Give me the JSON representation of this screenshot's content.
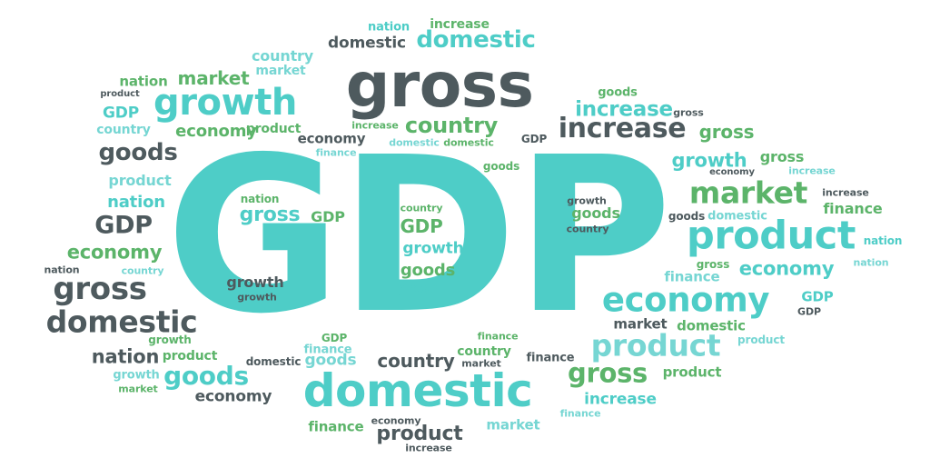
{
  "cloud": {
    "main_word": "GDP",
    "colors": {
      "teal": "#4ecdc7",
      "green": "#5cb46a",
      "dark": "#4e5a5e",
      "light_teal": "#76d6d3"
    },
    "words": [
      {
        "text": "nation",
        "color": "teal"
      },
      {
        "text": "increase",
        "color": "green"
      },
      {
        "text": "domestic",
        "color": "dark"
      },
      {
        "text": "domestic",
        "color": "teal"
      },
      {
        "text": "country",
        "color": "light_teal"
      },
      {
        "text": "market",
        "color": "light_teal"
      },
      {
        "text": "gross",
        "color": "dark"
      },
      {
        "text": "nation",
        "color": "green"
      },
      {
        "text": "market",
        "color": "green"
      },
      {
        "text": "product",
        "color": "dark"
      },
      {
        "text": "growth",
        "color": "teal"
      },
      {
        "text": "GDP",
        "color": "teal"
      },
      {
        "text": "goods",
        "color": "green"
      },
      {
        "text": "increase",
        "color": "teal"
      },
      {
        "text": "gross",
        "color": "dark"
      },
      {
        "text": "country",
        "color": "light_teal"
      },
      {
        "text": "country",
        "color": "green"
      },
      {
        "text": "economy",
        "color": "green"
      },
      {
        "text": "increase",
        "color": "green"
      },
      {
        "text": "product",
        "color": "green"
      },
      {
        "text": "increase",
        "color": "dark"
      },
      {
        "text": "gross",
        "color": "green"
      },
      {
        "text": "economy",
        "color": "dark"
      },
      {
        "text": "domestic",
        "color": "light_teal"
      },
      {
        "text": "domestic",
        "color": "green"
      },
      {
        "text": "GDP",
        "color": "dark"
      },
      {
        "text": "finance",
        "color": "light_teal"
      },
      {
        "text": "goods",
        "color": "dark"
      },
      {
        "text": "goods",
        "color": "green"
      },
      {
        "text": "growth",
        "color": "teal"
      },
      {
        "text": "gross",
        "color": "green"
      },
      {
        "text": "economy",
        "color": "dark"
      },
      {
        "text": "increase",
        "color": "light_teal"
      },
      {
        "text": "product",
        "color": "light_teal"
      },
      {
        "text": "nation",
        "color": "teal"
      },
      {
        "text": "market",
        "color": "green"
      },
      {
        "text": "increase",
        "color": "dark"
      },
      {
        "text": "nation",
        "color": "green"
      },
      {
        "text": "gross",
        "color": "teal"
      },
      {
        "text": "GDP",
        "color": "green"
      },
      {
        "text": "country",
        "color": "green"
      },
      {
        "text": "GDP",
        "color": "green"
      },
      {
        "text": "growth",
        "color": "teal"
      },
      {
        "text": "goods",
        "color": "green"
      },
      {
        "text": "gross",
        "color": "teal"
      },
      {
        "text": "growth",
        "color": "dark"
      },
      {
        "text": "goods",
        "color": "green"
      },
      {
        "text": "country",
        "color": "dark"
      },
      {
        "text": "goods",
        "color": "dark"
      },
      {
        "text": "domestic",
        "color": "light_teal"
      },
      {
        "text": "GDP",
        "color": "dark"
      },
      {
        "text": "finance",
        "color": "green"
      },
      {
        "text": "economy",
        "color": "green"
      },
      {
        "text": "country",
        "color": "light_teal"
      },
      {
        "text": "product",
        "color": "teal"
      },
      {
        "text": "nation",
        "color": "teal"
      },
      {
        "text": "nation",
        "color": "dark"
      },
      {
        "text": "gross",
        "color": "green"
      },
      {
        "text": "finance",
        "color": "light_teal"
      },
      {
        "text": "economy",
        "color": "teal"
      },
      {
        "text": "nation",
        "color": "light_teal"
      },
      {
        "text": "gross",
        "color": "dark"
      },
      {
        "text": "growth",
        "color": "dark"
      },
      {
        "text": "growth",
        "color": "dark"
      },
      {
        "text": "economy",
        "color": "teal"
      },
      {
        "text": "GDP",
        "color": "teal"
      },
      {
        "text": "GDP",
        "color": "dark"
      },
      {
        "text": "domestic",
        "color": "dark"
      },
      {
        "text": "market",
        "color": "dark"
      },
      {
        "text": "domestic",
        "color": "green"
      },
      {
        "text": "growth",
        "color": "green"
      },
      {
        "text": "GDP",
        "color": "green"
      },
      {
        "text": "finance",
        "color": "light_teal"
      },
      {
        "text": "product",
        "color": "light_teal"
      },
      {
        "text": "finance",
        "color": "green"
      },
      {
        "text": "product",
        "color": "light_teal"
      },
      {
        "text": "nation",
        "color": "dark"
      },
      {
        "text": "product",
        "color": "green"
      },
      {
        "text": "domestic",
        "color": "dark"
      },
      {
        "text": "goods",
        "color": "light_teal"
      },
      {
        "text": "country",
        "color": "dark"
      },
      {
        "text": "country",
        "color": "green"
      },
      {
        "text": "market",
        "color": "dark"
      },
      {
        "text": "finance",
        "color": "dark"
      },
      {
        "text": "growth",
        "color": "light_teal"
      },
      {
        "text": "goods",
        "color": "teal"
      },
      {
        "text": "gross",
        "color": "green"
      },
      {
        "text": "product",
        "color": "green"
      },
      {
        "text": "market",
        "color": "green"
      },
      {
        "text": "economy",
        "color": "dark"
      },
      {
        "text": "domestic",
        "color": "teal"
      },
      {
        "text": "increase",
        "color": "teal"
      },
      {
        "text": "finance",
        "color": "light_teal"
      },
      {
        "text": "finance",
        "color": "green"
      },
      {
        "text": "economy",
        "color": "dark"
      },
      {
        "text": "market",
        "color": "light_teal"
      },
      {
        "text": "product",
        "color": "dark"
      },
      {
        "text": "increase",
        "color": "dark"
      }
    ]
  }
}
